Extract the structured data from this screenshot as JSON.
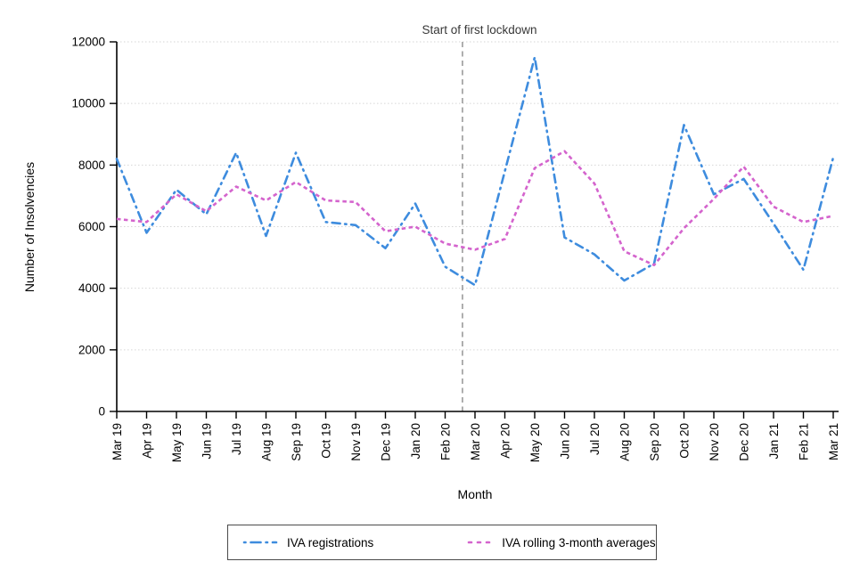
{
  "chart_data": {
    "type": "line",
    "title": "",
    "xlabel": "Month",
    "ylabel": "Number of Insolvencies",
    "ylim": [
      0,
      12000
    ],
    "yticks": [
      0,
      2000,
      4000,
      6000,
      8000,
      10000,
      12000
    ],
    "grid": "horizontal dotted lines at each y tick except 0",
    "legend_position": "bottom-center boxed",
    "grid_color": "#d6d6d6",
    "axis_color": "#000000",
    "categories": [
      "Mar 19",
      "Apr 19",
      "May 19",
      "Jun 19",
      "Jul 19",
      "Aug 19",
      "Sep 19",
      "Oct 19",
      "Nov 19",
      "Dec 19",
      "Jan 20",
      "Feb 20",
      "Mar 20",
      "Apr 20",
      "May 20",
      "Jun 20",
      "Jul 20",
      "Aug 20",
      "Sep 20",
      "Oct 20",
      "Nov 20",
      "Dec 20",
      "Jan 21",
      "Feb 21",
      "Mar 21"
    ],
    "series": [
      {
        "name": "IVA registrations",
        "color": "#3e8cde",
        "style": "dash-dot",
        "values": [
          8200,
          5800,
          7200,
          6400,
          8400,
          5700,
          8400,
          6150,
          6050,
          5300,
          6750,
          4700,
          4100,
          7800,
          11500,
          5650,
          5100,
          4250,
          4800,
          9300,
          7050,
          7550,
          6100,
          4600,
          8250
        ]
      },
      {
        "name": "IVA rolling 3-month averages",
        "color": "#d464cd",
        "style": "dotted",
        "values": [
          6250,
          6150,
          7050,
          6500,
          7300,
          6850,
          7450,
          6850,
          6800,
          5850,
          6000,
          5450,
          5250,
          5600,
          7900,
          8450,
          7400,
          5200,
          4750,
          5950,
          6900,
          7950,
          6650,
          6150,
          6350
        ]
      }
    ],
    "annotation": {
      "label": "Start of first lockdown",
      "x_between": [
        "Feb 20",
        "Mar 20"
      ],
      "x_index": 11.58,
      "color": "#949494",
      "style": "vertical dashed line spanning plot height"
    }
  }
}
